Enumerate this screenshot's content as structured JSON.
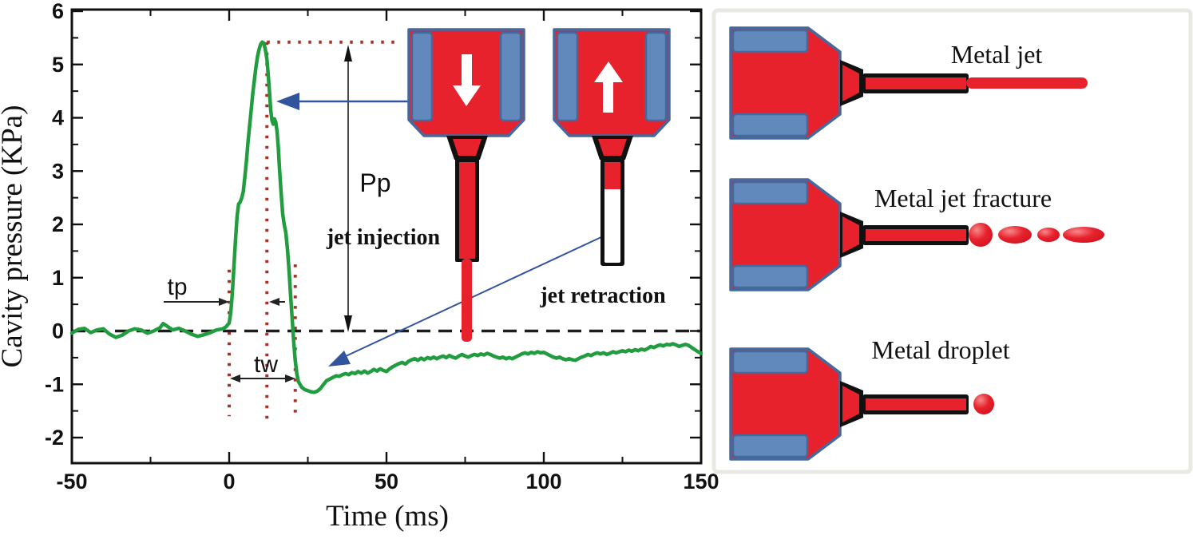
{
  "colors": {
    "curve_green": "#219c3f",
    "guide_red": "#a93226",
    "dash_black": "#1c1c1c",
    "arrow_navy": "#32549e",
    "nozzle_red": "#e8222d",
    "nozzle_red_light": "#f4696f",
    "nozzle_blue": "#6189bb",
    "nozzle_blue_dark": "#44699e",
    "panel_border": "#e9e9e4",
    "text_black": "#111111"
  },
  "chart_data": {
    "type": "line",
    "title": "",
    "xlabel": "Time (ms)",
    "ylabel": "Cavity pressure (KPa)",
    "xlim": [
      -50,
      150
    ],
    "ylim": [
      -2.5,
      6.1
    ],
    "xticks": [
      -50,
      0,
      50,
      100,
      150
    ],
    "xminor": [
      -25,
      25,
      75,
      125
    ],
    "yticks": [
      -2,
      -1,
      0,
      1,
      2,
      3,
      4,
      5,
      6
    ],
    "yminor_step": 0.5,
    "grid": false,
    "legend": "none",
    "baseline": 0,
    "peak_kpa": 5.4,
    "min_kpa": -1.15,
    "guides": {
      "h_dotted": {
        "p": 5.42,
        "t1": 12,
        "t2": 54
      },
      "v_dotted": [
        {
          "t": 0,
          "p_top": 1.15,
          "p_bot": -1.6
        },
        {
          "t": 12,
          "p_top": 5.42,
          "p_bot": -1.65
        },
        {
          "t": 21,
          "p_top": 1.25,
          "p_bot": -1.55
        }
      ]
    },
    "annotations": {
      "tp_label": "tp",
      "tw_label": "tw",
      "pp_label": "Pp",
      "jet_injection_label": "jet injection",
      "jet_retraction_label": "jet retraction"
    },
    "series": [
      {
        "name": "cavity pressure",
        "points": [
          [
            -50,
            -0.04
          ],
          [
            -48,
            0.03
          ],
          [
            -46,
            0.05
          ],
          [
            -44,
            -0.03
          ],
          [
            -42,
            0.02
          ],
          [
            -40,
            0.04
          ],
          [
            -38,
            -0.06
          ],
          [
            -36,
            -0.12
          ],
          [
            -34,
            -0.08
          ],
          [
            -32,
            0.0
          ],
          [
            -30,
            0.04
          ],
          [
            -28,
            0.02
          ],
          [
            -26,
            -0.04
          ],
          [
            -24,
            0.0
          ],
          [
            -22,
            0.06
          ],
          [
            -21,
            0.14
          ],
          [
            -20,
            0.1
          ],
          [
            -18,
            0.02
          ],
          [
            -16,
            0.05
          ],
          [
            -14,
            0.0
          ],
          [
            -12,
            -0.06
          ],
          [
            -10,
            -0.1
          ],
          [
            -8,
            -0.07
          ],
          [
            -6,
            -0.03
          ],
          [
            -4,
            0.02
          ],
          [
            -2,
            0.04
          ],
          [
            -1,
            0.08
          ],
          [
            0,
            0.15
          ],
          [
            0.5,
            0.35
          ],
          [
            1,
            0.7
          ],
          [
            1.5,
            1.2
          ],
          [
            2,
            1.7
          ],
          [
            2.5,
            2.15
          ],
          [
            3,
            2.38
          ],
          [
            3.5,
            2.42
          ],
          [
            4,
            2.5
          ],
          [
            4.5,
            2.62
          ],
          [
            5,
            2.9
          ],
          [
            5.5,
            3.2
          ],
          [
            6,
            3.55
          ],
          [
            6.5,
            3.85
          ],
          [
            7,
            4.15
          ],
          [
            7.5,
            4.45
          ],
          [
            8,
            4.7
          ],
          [
            8.5,
            4.95
          ],
          [
            9,
            5.15
          ],
          [
            9.5,
            5.28
          ],
          [
            10,
            5.38
          ],
          [
            10.5,
            5.42
          ],
          [
            11,
            5.4
          ],
          [
            11.5,
            5.28
          ],
          [
            12,
            5.1
          ],
          [
            12.4,
            4.8
          ],
          [
            12.8,
            4.5
          ],
          [
            13.2,
            4.15
          ],
          [
            13.6,
            3.95
          ],
          [
            14,
            3.88
          ],
          [
            14.4,
            3.98
          ],
          [
            14.8,
            3.92
          ],
          [
            15.2,
            3.75
          ],
          [
            15.6,
            3.45
          ],
          [
            16,
            3.05
          ],
          [
            16.5,
            2.6
          ],
          [
            17,
            2.2
          ],
          [
            17.5,
            2.0
          ],
          [
            18,
            1.85
          ],
          [
            18.5,
            1.55
          ],
          [
            19,
            1.15
          ],
          [
            19.5,
            0.7
          ],
          [
            20,
            0.25
          ],
          [
            20.5,
            -0.2
          ],
          [
            21,
            -0.55
          ],
          [
            21.5,
            -0.8
          ],
          [
            22,
            -0.95
          ],
          [
            23,
            -1.05
          ],
          [
            24,
            -1.1
          ],
          [
            25,
            -1.12
          ],
          [
            26,
            -1.14
          ],
          [
            27,
            -1.15
          ],
          [
            28,
            -1.13
          ],
          [
            29,
            -1.08
          ],
          [
            30,
            -1.0
          ],
          [
            31,
            -0.93
          ],
          [
            32,
            -0.9
          ],
          [
            33,
            -0.87
          ],
          [
            34,
            -0.84
          ],
          [
            35,
            -0.85
          ],
          [
            36,
            -0.82
          ],
          [
            37,
            -0.8
          ],
          [
            38,
            -0.82
          ],
          [
            39,
            -0.78
          ],
          [
            40,
            -0.8
          ],
          [
            41,
            -0.76
          ],
          [
            42,
            -0.79
          ],
          [
            43,
            -0.75
          ],
          [
            44,
            -0.79
          ],
          [
            45,
            -0.76
          ],
          [
            46,
            -0.72
          ],
          [
            47,
            -0.75
          ],
          [
            48,
            -0.71
          ],
          [
            49,
            -0.74
          ],
          [
            50,
            -0.76
          ],
          [
            51,
            -0.71
          ],
          [
            52,
            -0.67
          ],
          [
            53,
            -0.64
          ],
          [
            54,
            -0.61
          ],
          [
            55,
            -0.59
          ],
          [
            56,
            -0.62
          ],
          [
            57,
            -0.57
          ],
          [
            58,
            -0.54
          ],
          [
            59,
            -0.52
          ],
          [
            60,
            -0.55
          ],
          [
            61,
            -0.51
          ],
          [
            62,
            -0.54
          ],
          [
            63,
            -0.5
          ],
          [
            64,
            -0.52
          ],
          [
            65,
            -0.49
          ],
          [
            66,
            -0.52
          ],
          [
            67,
            -0.49
          ],
          [
            68,
            -0.47
          ],
          [
            69,
            -0.5
          ],
          [
            70,
            -0.46
          ],
          [
            71,
            -0.49
          ],
          [
            72,
            -0.51
          ],
          [
            73,
            -0.47
          ],
          [
            74,
            -0.44
          ],
          [
            75,
            -0.47
          ],
          [
            76,
            -0.49
          ],
          [
            77,
            -0.46
          ],
          [
            78,
            -0.44
          ],
          [
            79,
            -0.46
          ],
          [
            80,
            -0.43
          ],
          [
            81,
            -0.45
          ],
          [
            82,
            -0.42
          ],
          [
            83,
            -0.44
          ],
          [
            84,
            -0.47
          ],
          [
            85,
            -0.49
          ],
          [
            86,
            -0.51
          ],
          [
            87,
            -0.49
          ],
          [
            88,
            -0.52
          ],
          [
            89,
            -0.5
          ],
          [
            90,
            -0.52
          ],
          [
            91,
            -0.49
          ],
          [
            92,
            -0.46
          ],
          [
            93,
            -0.43
          ],
          [
            94,
            -0.41
          ],
          [
            95,
            -0.43
          ],
          [
            96,
            -0.4
          ],
          [
            97,
            -0.42
          ],
          [
            98,
            -0.39
          ],
          [
            99,
            -0.41
          ],
          [
            100,
            -0.4
          ],
          [
            101,
            -0.43
          ],
          [
            102,
            -0.46
          ],
          [
            103,
            -0.49
          ],
          [
            104,
            -0.51
          ],
          [
            105,
            -0.49
          ],
          [
            106,
            -0.52
          ],
          [
            107,
            -0.54
          ],
          [
            108,
            -0.52
          ],
          [
            109,
            -0.54
          ],
          [
            110,
            -0.55
          ],
          [
            111,
            -0.52
          ],
          [
            112,
            -0.49
          ],
          [
            113,
            -0.47
          ],
          [
            114,
            -0.44
          ],
          [
            115,
            -0.46
          ],
          [
            116,
            -0.43
          ],
          [
            117,
            -0.41
          ],
          [
            118,
            -0.43
          ],
          [
            119,
            -0.41
          ],
          [
            120,
            -0.44
          ],
          [
            121,
            -0.42
          ],
          [
            122,
            -0.39
          ],
          [
            123,
            -0.41
          ],
          [
            124,
            -0.39
          ],
          [
            125,
            -0.37
          ],
          [
            126,
            -0.39
          ],
          [
            127,
            -0.36
          ],
          [
            128,
            -0.38
          ],
          [
            129,
            -0.35
          ],
          [
            130,
            -0.37
          ],
          [
            131,
            -0.34
          ],
          [
            132,
            -0.36
          ],
          [
            133,
            -0.33
          ],
          [
            134,
            -0.29
          ],
          [
            135,
            -0.31
          ],
          [
            136,
            -0.28
          ],
          [
            137,
            -0.26
          ],
          [
            138,
            -0.28
          ],
          [
            139,
            -0.25
          ],
          [
            140,
            -0.26
          ],
          [
            141,
            -0.24
          ],
          [
            142,
            -0.26
          ],
          [
            143,
            -0.29
          ],
          [
            144,
            -0.27
          ],
          [
            145,
            -0.25
          ],
          [
            146,
            -0.27
          ],
          [
            147,
            -0.31
          ],
          [
            148,
            -0.35
          ],
          [
            149,
            -0.39
          ],
          [
            150,
            -0.42
          ]
        ]
      }
    ]
  },
  "right_panel": {
    "items": [
      {
        "label": "Metal jet"
      },
      {
        "label": "Metal jet fracture"
      },
      {
        "label": "Metal droplet"
      }
    ]
  }
}
